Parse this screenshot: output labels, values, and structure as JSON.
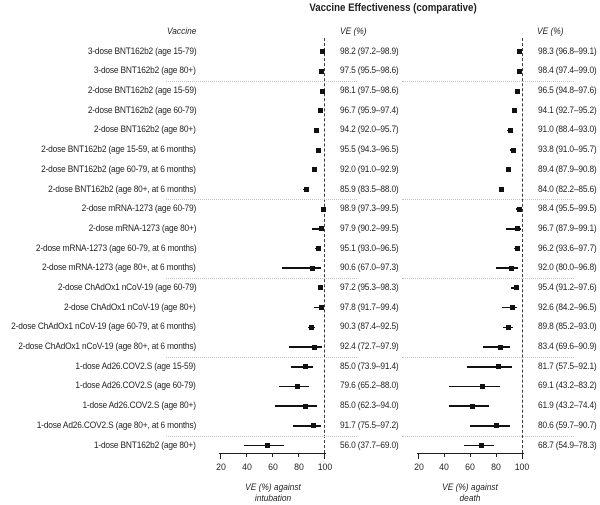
{
  "title": "Vaccine Effectiveness (comparative)",
  "column_headers": {
    "vaccine": "Vaccine",
    "ve": "VE (%)"
  },
  "colors": {
    "text": "#1f1f1f",
    "marker": "#111111",
    "axis": "#1f1f1f",
    "reference_line": "#3a3a3a",
    "separator": "#c4c4c4",
    "background": "#ffffff"
  },
  "chart_data": {
    "type": "forest",
    "reference_line_value": 100,
    "panels": [
      {
        "key": "intubation",
        "axis_title": [
          "VE (%) against",
          "intubation"
        ],
        "ticks": [
          20,
          40,
          60,
          80,
          100
        ],
        "xlim": [
          20,
          100
        ]
      },
      {
        "key": "death",
        "axis_title": [
          "VE (%) against",
          "death"
        ],
        "ticks": [
          20,
          40,
          60,
          80,
          100
        ],
        "xlim": [
          20,
          100
        ]
      }
    ],
    "rows": [
      {
        "label": "3-dose BNT162b2 (age 15-79)",
        "intubation": {
          "est": 98.2,
          "lo": 97.2,
          "hi": 98.9,
          "text": "98.2 (97.2–98.9)"
        },
        "death": {
          "est": 98.3,
          "lo": 96.8,
          "hi": 99.1,
          "text": "98.3 (96.8–99.1)"
        }
      },
      {
        "label": "3-dose BNT162b2 (age 80+)",
        "intubation": {
          "est": 97.5,
          "lo": 95.5,
          "hi": 98.6,
          "text": "97.5 (95.5–98.6)"
        },
        "death": {
          "est": 98.4,
          "lo": 97.4,
          "hi": 99.0,
          "text": "98.4 (97.4–99.0)"
        }
      },
      {
        "label": "2-dose BNT162b2 (age 15-59)",
        "intubation": {
          "est": 98.1,
          "lo": 97.5,
          "hi": 98.6,
          "text": "98.1 (97.5–98.6)"
        },
        "death": {
          "est": 96.5,
          "lo": 94.8,
          "hi": 97.6,
          "text": "96.5 (94.8–97.6)"
        }
      },
      {
        "label": "2-dose BNT162b2 (age 60-79)",
        "intubation": {
          "est": 96.7,
          "lo": 95.9,
          "hi": 97.4,
          "text": "96.7 (95.9–97.4)"
        },
        "death": {
          "est": 94.1,
          "lo": 92.7,
          "hi": 95.2,
          "text": "94.1 (92.7–95.2)"
        }
      },
      {
        "label": "2-dose BNT162b2 (age 80+)",
        "intubation": {
          "est": 94.2,
          "lo": 92.0,
          "hi": 95.7,
          "text": "94.2 (92.0–95.7)"
        },
        "death": {
          "est": 91.0,
          "lo": 88.4,
          "hi": 93.0,
          "text": "91.0 (88.4–93.0)"
        }
      },
      {
        "label": "2-dose BNT162b2 (age 15-59, at 6 months)",
        "intubation": {
          "est": 95.5,
          "lo": 94.3,
          "hi": 96.5,
          "text": "95.5 (94.3–96.5)"
        },
        "death": {
          "est": 93.8,
          "lo": 91.0,
          "hi": 95.7,
          "text": "93.8 (91.0–95.7)"
        }
      },
      {
        "label": "2-dose BNT162b2 (age 60-79, at 6 months)",
        "intubation": {
          "est": 92.0,
          "lo": 91.0,
          "hi": 92.9,
          "text": "92.0 (91.0–92.9)"
        },
        "death": {
          "est": 89.4,
          "lo": 87.9,
          "hi": 90.8,
          "text": "89.4 (87.9–90.8)"
        }
      },
      {
        "label": "2-dose BNT162b2 (age 80+, at 6 months)",
        "intubation": {
          "est": 85.9,
          "lo": 83.5,
          "hi": 88.0,
          "text": "85.9 (83.5–88.0)"
        },
        "death": {
          "est": 84.0,
          "lo": 82.2,
          "hi": 85.6,
          "text": "84.0 (82.2–85.6)"
        }
      },
      {
        "label": "2-dose mRNA-1273 (age 60-79)",
        "intubation": {
          "est": 98.9,
          "lo": 97.3,
          "hi": 99.5,
          "text": "98.9 (97.3–99.5)"
        },
        "death": {
          "est": 98.4,
          "lo": 95.5,
          "hi": 99.5,
          "text": "98.4 (95.5–99.5)"
        }
      },
      {
        "label": "2-dose mRNA-1273 (age 80+)",
        "intubation": {
          "est": 97.9,
          "lo": 90.2,
          "hi": 99.5,
          "text": "97.9 (90.2–99.5)"
        },
        "death": {
          "est": 96.7,
          "lo": 87.9,
          "hi": 99.1,
          "text": "96.7 (87.9–99.1)"
        }
      },
      {
        "label": "2-dose mRNA-1273 (age 60-79, at 6 months)",
        "intubation": {
          "est": 95.1,
          "lo": 93.0,
          "hi": 96.5,
          "text": "95.1 (93.0–96.5)"
        },
        "death": {
          "est": 96.2,
          "lo": 93.6,
          "hi": 97.7,
          "text": "96.2 (93.6–97.7)"
        }
      },
      {
        "label": "2-dose mRNA-1273 (age 80+, at 6 months)",
        "intubation": {
          "est": 90.6,
          "lo": 67.0,
          "hi": 97.3,
          "text": "90.6 (67.0–97.3)"
        },
        "death": {
          "est": 92.0,
          "lo": 80.0,
          "hi": 96.8,
          "text": "92.0 (80.0–96.8)"
        }
      },
      {
        "label": "2-dose ChAdOx1 nCoV-19 (age 60-79)",
        "intubation": {
          "est": 97.2,
          "lo": 95.3,
          "hi": 98.3,
          "text": "97.2 (95.3–98.3)"
        },
        "death": {
          "est": 95.4,
          "lo": 91.2,
          "hi": 97.6,
          "text": "95.4 (91.2–97.6)"
        }
      },
      {
        "label": "2-dose ChAdOx1 nCoV-19 (age 80+)",
        "intubation": {
          "est": 97.8,
          "lo": 91.7,
          "hi": 99.4,
          "text": "97.8 (91.7–99.4)"
        },
        "death": {
          "est": 92.6,
          "lo": 84.2,
          "hi": 96.5,
          "text": "92.6 (84.2–96.5)"
        }
      },
      {
        "label": "2-dose ChAdOx1 nCoV-19 (age 60-79, at 6 months)",
        "intubation": {
          "est": 90.3,
          "lo": 87.4,
          "hi": 92.5,
          "text": "90.3 (87.4–92.5)"
        },
        "death": {
          "est": 89.8,
          "lo": 85.2,
          "hi": 93.0,
          "text": "89.8 (85.2–93.0)"
        }
      },
      {
        "label": "2-dose ChAdOx1 nCoV-19 (age 80+, at 6 months)",
        "intubation": {
          "est": 92.4,
          "lo": 72.7,
          "hi": 97.9,
          "text": "92.4 (72.7–97.9)"
        },
        "death": {
          "est": 83.4,
          "lo": 69.6,
          "hi": 90.9,
          "text": "83.4 (69.6–90.9)"
        }
      },
      {
        "label": "1-dose Ad26.COV2.S (age 15-59)",
        "intubation": {
          "est": 85.0,
          "lo": 73.9,
          "hi": 91.4,
          "text": "85.0 (73.9–91.4)"
        },
        "death": {
          "est": 81.7,
          "lo": 57.5,
          "hi": 92.1,
          "text": "81.7 (57.5–92.1)"
        }
      },
      {
        "label": "1-dose Ad26.COV2.S (age 60-79)",
        "intubation": {
          "est": 79.6,
          "lo": 65.2,
          "hi": 88.0,
          "text": "79.6 (65.2–88.0)"
        },
        "death": {
          "est": 69.1,
          "lo": 43.2,
          "hi": 83.2,
          "text": "69.1 (43.2–83.2)"
        }
      },
      {
        "label": "1-dose Ad26.COV2.S (age 80+)",
        "intubation": {
          "est": 85.0,
          "lo": 62.3,
          "hi": 94.0,
          "text": "85.0 (62.3–94.0)"
        },
        "death": {
          "est": 61.9,
          "lo": 43.2,
          "hi": 74.4,
          "text": "61.9 (43.2–74.4)"
        }
      },
      {
        "label": "1-dose Ad26.COV2.S (age 80+, at 6 months)",
        "intubation": {
          "est": 91.7,
          "lo": 75.5,
          "hi": 97.2,
          "text": "91.7 (75.5–97.2)"
        },
        "death": {
          "est": 80.6,
          "lo": 59.7,
          "hi": 90.7,
          "text": "80.6 (59.7–90.7)"
        }
      },
      {
        "label": "1-dose BNT162b2 (age 80+)",
        "intubation": {
          "est": 56.0,
          "lo": 37.7,
          "hi": 69.0,
          "text": "56.0 (37.7–69.0)"
        },
        "death": {
          "est": 68.7,
          "lo": 54.9,
          "hi": 78.3,
          "text": "68.7 (54.9–78.3)"
        }
      }
    ],
    "group_separators_after_row": [
      2,
      8,
      12,
      16,
      20
    ]
  }
}
